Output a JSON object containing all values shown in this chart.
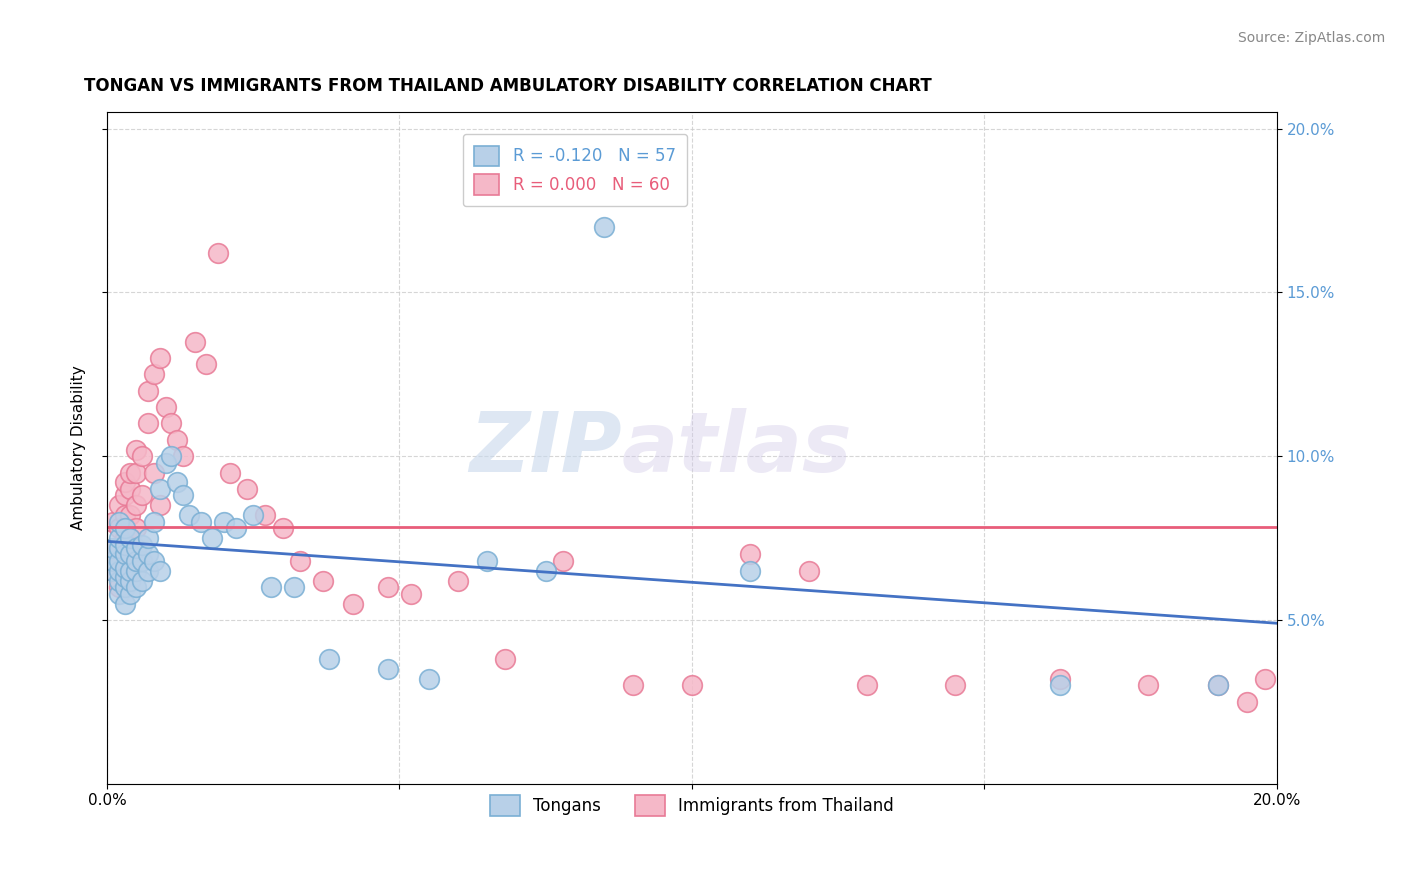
{
  "title": "TONGAN VS IMMIGRANTS FROM THAILAND AMBULATORY DISABILITY CORRELATION CHART",
  "source": "Source: ZipAtlas.com",
  "ylabel": "Ambulatory Disability",
  "xlim": [
    0.0,
    0.2
  ],
  "ylim": [
    0.0,
    0.205
  ],
  "yticks": [
    0.05,
    0.1,
    0.15,
    0.2
  ],
  "xticks": [
    0.0,
    0.05,
    0.1,
    0.15,
    0.2
  ],
  "legend_blue_label": "Tongans",
  "legend_pink_label": "Immigrants from Thailand",
  "r_blue": -0.12,
  "n_blue": 57,
  "r_pink": 0.0,
  "n_pink": 60,
  "blue_color": "#b8d0e8",
  "blue_edge": "#7aafd4",
  "pink_color": "#f5b8c8",
  "pink_edge": "#e87a96",
  "trend_blue": "#4472c4",
  "trend_pink": "#e85d7a",
  "watermark_zip": "ZIP",
  "watermark_atlas": "atlas",
  "tongans_x": [
    0.001,
    0.001,
    0.001,
    0.002,
    0.002,
    0.002,
    0.002,
    0.002,
    0.002,
    0.002,
    0.003,
    0.003,
    0.003,
    0.003,
    0.003,
    0.003,
    0.003,
    0.004,
    0.004,
    0.004,
    0.004,
    0.004,
    0.005,
    0.005,
    0.005,
    0.005,
    0.006,
    0.006,
    0.006,
    0.007,
    0.007,
    0.007,
    0.008,
    0.008,
    0.009,
    0.009,
    0.01,
    0.011,
    0.012,
    0.013,
    0.014,
    0.016,
    0.018,
    0.02,
    0.022,
    0.025,
    0.028,
    0.032,
    0.038,
    0.048,
    0.055,
    0.065,
    0.075,
    0.085,
    0.11,
    0.163,
    0.19
  ],
  "tongans_y": [
    0.065,
    0.068,
    0.072,
    0.058,
    0.062,
    0.065,
    0.068,
    0.072,
    0.075,
    0.08,
    0.055,
    0.06,
    0.063,
    0.066,
    0.07,
    0.073,
    0.078,
    0.058,
    0.062,
    0.065,
    0.07,
    0.075,
    0.06,
    0.065,
    0.068,
    0.072,
    0.062,
    0.068,
    0.073,
    0.065,
    0.07,
    0.075,
    0.068,
    0.08,
    0.065,
    0.09,
    0.098,
    0.1,
    0.092,
    0.088,
    0.082,
    0.08,
    0.075,
    0.08,
    0.078,
    0.082,
    0.06,
    0.06,
    0.038,
    0.035,
    0.032,
    0.068,
    0.065,
    0.17,
    0.065,
    0.03,
    0.03
  ],
  "thailand_x": [
    0.001,
    0.001,
    0.001,
    0.001,
    0.002,
    0.002,
    0.002,
    0.002,
    0.002,
    0.003,
    0.003,
    0.003,
    0.003,
    0.003,
    0.004,
    0.004,
    0.004,
    0.004,
    0.005,
    0.005,
    0.005,
    0.005,
    0.006,
    0.006,
    0.007,
    0.007,
    0.008,
    0.008,
    0.009,
    0.009,
    0.01,
    0.011,
    0.012,
    0.013,
    0.015,
    0.017,
    0.019,
    0.021,
    0.024,
    0.027,
    0.03,
    0.033,
    0.037,
    0.042,
    0.048,
    0.052,
    0.06,
    0.068,
    0.078,
    0.09,
    0.1,
    0.11,
    0.12,
    0.13,
    0.145,
    0.163,
    0.178,
    0.19,
    0.195,
    0.198
  ],
  "thailand_y": [
    0.065,
    0.068,
    0.072,
    0.08,
    0.06,
    0.065,
    0.07,
    0.078,
    0.085,
    0.068,
    0.075,
    0.082,
    0.088,
    0.092,
    0.075,
    0.082,
    0.09,
    0.095,
    0.078,
    0.085,
    0.095,
    0.102,
    0.088,
    0.1,
    0.11,
    0.12,
    0.095,
    0.125,
    0.085,
    0.13,
    0.115,
    0.11,
    0.105,
    0.1,
    0.135,
    0.128,
    0.162,
    0.095,
    0.09,
    0.082,
    0.078,
    0.068,
    0.062,
    0.055,
    0.06,
    0.058,
    0.062,
    0.038,
    0.068,
    0.03,
    0.03,
    0.07,
    0.065,
    0.03,
    0.03,
    0.032,
    0.03,
    0.03,
    0.025,
    0.032
  ],
  "pink_trendline_y": 0.0785,
  "blue_trend_x0": 0.0,
  "blue_trend_y0": 0.074,
  "blue_trend_x1": 0.2,
  "blue_trend_y1": 0.049
}
